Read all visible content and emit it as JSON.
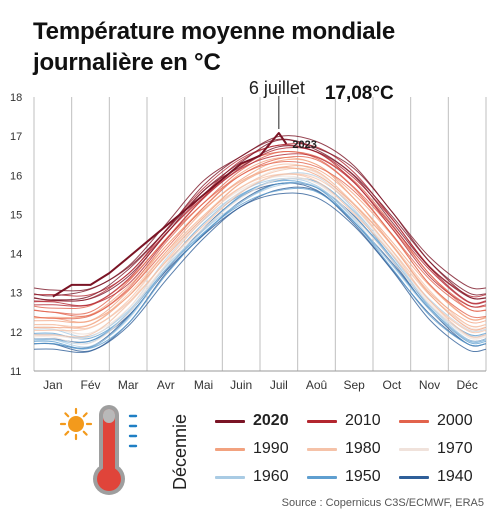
{
  "title_line1": "Température moyenne mondiale",
  "title_line2": "journalière en °C",
  "decade_axis_label": "Décennie",
  "source": "Source : Copernicus C3S/ECMWF, ERA5",
  "colors": {
    "d2020": "#7a1425",
    "d2010": "#b3262f",
    "d2000": "#e2634c",
    "d1990": "#f2a27f",
    "d1980": "#f5c2a8",
    "d1970": "#f0e2db",
    "d1960": "#a9cbe4",
    "d1950": "#5f9fd0",
    "d1940": "#2f5f99",
    "grid": "#bfbfbf",
    "sun": "#f39a1c",
    "thermo_red": "#e0443a",
    "thermo_grey": "#b9b9b9"
  },
  "icons": [
    "sun-icon",
    "thermometer-icon"
  ],
  "chart_data": {
    "type": "line",
    "title": "Température moyenne mondiale journalière en °C",
    "xlabel": "",
    "ylabel": "",
    "x_tick_labels": [
      "Jan",
      "Fév",
      "Mar",
      "Avr",
      "Mai",
      "Juin",
      "Juil",
      "Aoû",
      "Sep",
      "Oct",
      "Nov",
      "Déc"
    ],
    "y_ticks": [
      11,
      12,
      13,
      14,
      15,
      16,
      17,
      18
    ],
    "ylim": [
      11,
      18
    ],
    "grid": "vertical lines at month boundaries",
    "legend_title": "Décennie",
    "legend": [
      {
        "label": "2020",
        "color_key": "d2020",
        "bold": true
      },
      {
        "label": "2010",
        "color_key": "d2010",
        "bold": false
      },
      {
        "label": "2000",
        "color_key": "d2000",
        "bold": false
      },
      {
        "label": "1990",
        "color_key": "d1990",
        "bold": false
      },
      {
        "label": "1980",
        "color_key": "d1980",
        "bold": false
      },
      {
        "label": "1970",
        "color_key": "d1970",
        "bold": false
      },
      {
        "label": "1960",
        "color_key": "d1960",
        "bold": false
      },
      {
        "label": "1950",
        "color_key": "d1950",
        "bold": false
      },
      {
        "label": "1940",
        "color_key": "d1940",
        "bold": false
      }
    ],
    "series": [
      {
        "name": "1940",
        "color_key": "d1940",
        "values": [
          11.7,
          11.6,
          12.3,
          13.5,
          14.5,
          15.3,
          15.7,
          15.6,
          14.8,
          13.7,
          12.5,
          11.7
        ]
      },
      {
        "name": "1950",
        "color_key": "d1950",
        "values": [
          11.8,
          11.7,
          12.4,
          13.6,
          14.6,
          15.4,
          15.8,
          15.7,
          14.9,
          13.8,
          12.6,
          11.8
        ]
      },
      {
        "name": "1960",
        "color_key": "d1960",
        "values": [
          11.9,
          11.8,
          12.5,
          13.7,
          14.7,
          15.5,
          15.9,
          15.8,
          15.0,
          13.9,
          12.7,
          11.9
        ]
      },
      {
        "name": "1970",
        "color_key": "d1970",
        "values": [
          12.0,
          11.9,
          12.6,
          13.8,
          14.8,
          15.6,
          16.0,
          15.9,
          15.1,
          14.0,
          12.8,
          12.0
        ]
      },
      {
        "name": "1980",
        "color_key": "d1980",
        "values": [
          12.1,
          12.1,
          12.8,
          13.9,
          14.9,
          15.7,
          16.1,
          16.0,
          15.2,
          14.1,
          12.9,
          12.1
        ]
      },
      {
        "name": "1990",
        "color_key": "d1990",
        "values": [
          12.3,
          12.3,
          13.0,
          14.1,
          15.1,
          15.9,
          16.3,
          16.2,
          15.4,
          14.3,
          13.1,
          12.3
        ]
      },
      {
        "name": "2000",
        "color_key": "d2000",
        "values": [
          12.5,
          12.5,
          13.2,
          14.3,
          15.3,
          16.1,
          16.5,
          16.4,
          15.7,
          14.6,
          13.4,
          12.6
        ]
      },
      {
        "name": "2010",
        "color_key": "d2010",
        "values": [
          12.8,
          12.8,
          13.4,
          14.5,
          15.5,
          16.3,
          16.7,
          16.6,
          15.9,
          14.8,
          13.6,
          12.8
        ]
      },
      {
        "name": "2020",
        "color_key": "d2020",
        "values": [
          12.9,
          13.0,
          13.6,
          14.6,
          15.7,
          16.4,
          16.9,
          16.7,
          16.1,
          15.0,
          13.8,
          13.0
        ]
      }
    ],
    "highlight": {
      "label": "2023",
      "color_key": "d2020",
      "x": [
        0,
        0.5,
        1,
        1.5,
        2,
        2.5,
        3,
        3.5,
        4,
        4.5,
        5,
        5.5,
        6,
        6.2
      ],
      "y": [
        12.9,
        13.2,
        13.2,
        13.5,
        13.9,
        14.3,
        14.7,
        15.1,
        15.5,
        15.9,
        16.3,
        16.5,
        17.08,
        16.8
      ]
    },
    "annotation": {
      "text": "6 juillet",
      "value_text": "17,08°C",
      "x": 6.0,
      "y": 17.08
    }
  }
}
